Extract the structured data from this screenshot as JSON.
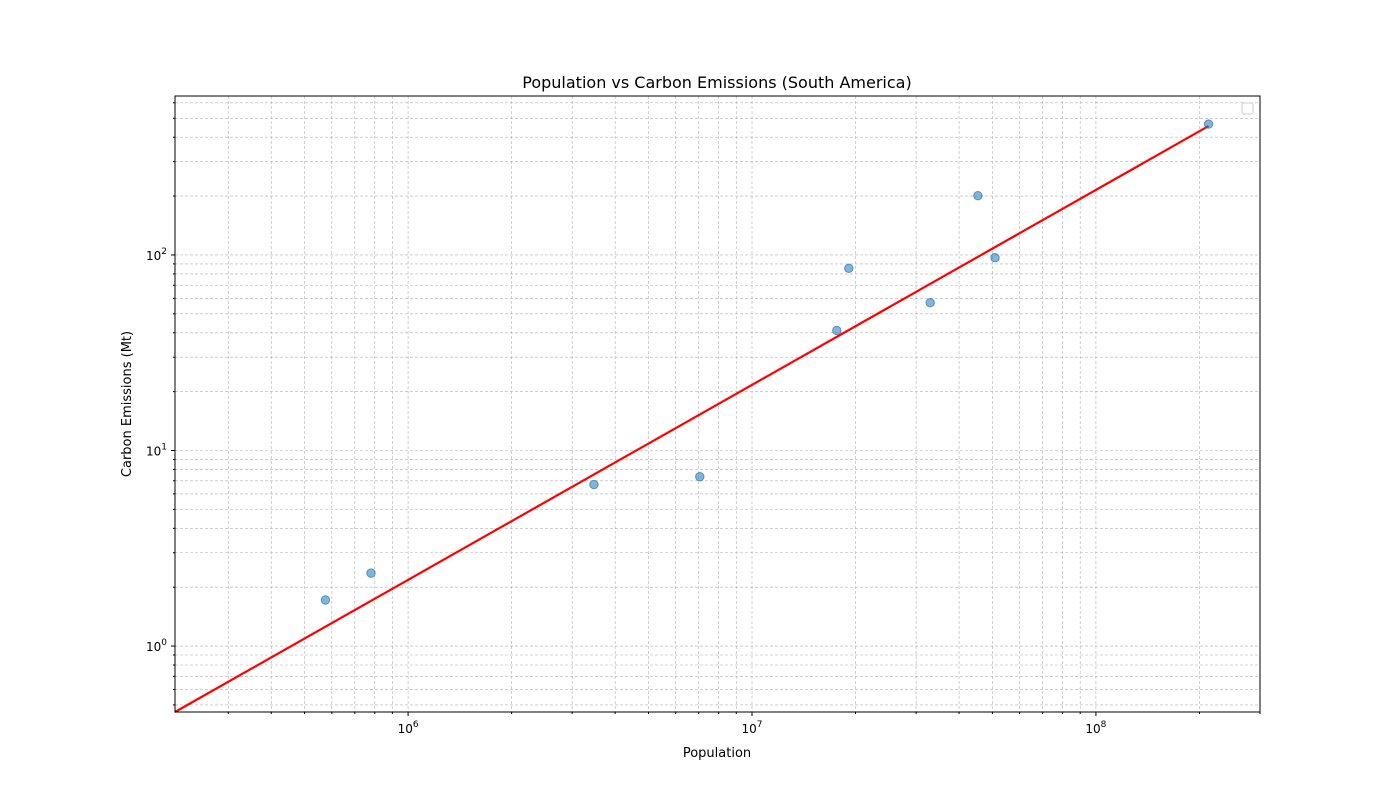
{
  "chart_data": {
    "type": "scatter",
    "title": "Population vs Carbon Emissions (South America)",
    "xlabel": "Population",
    "ylabel": "Carbon Emissions (Mt)",
    "x_scale": "log",
    "y_scale": "log",
    "xlim": [
      210000,
      300000000
    ],
    "ylim": [
      0.46,
      650
    ],
    "x_ticks": [
      {
        "value": 1000000,
        "base": "10",
        "exp": "6"
      },
      {
        "value": 10000000,
        "base": "10",
        "exp": "7"
      },
      {
        "value": 100000000,
        "base": "10",
        "exp": "8"
      }
    ],
    "y_ticks": [
      {
        "value": 1,
        "base": "10",
        "exp": "0"
      },
      {
        "value": 10,
        "base": "10",
        "exp": "1"
      },
      {
        "value": 100,
        "base": "10",
        "exp": "2"
      }
    ],
    "grid": true,
    "legend": "top-right (empty)",
    "colors": {
      "points": "#1f77b4",
      "fit_line": "#ff0000",
      "grid": "#b0b0b0"
    },
    "series": [
      {
        "type": "scatter",
        "x": [
          575000,
          780000,
          3470000,
          7050000,
          17640000,
          19120000,
          32970000,
          45370000,
          50880000,
          212560000
        ],
        "y": [
          1.72,
          2.36,
          6.7,
          7.35,
          41.1,
          85.5,
          57.0,
          201.0,
          96.8,
          467.0
        ]
      },
      {
        "type": "line",
        "x": [
          210000,
          212560000
        ],
        "y": [
          0.46,
          456.0
        ]
      }
    ]
  }
}
